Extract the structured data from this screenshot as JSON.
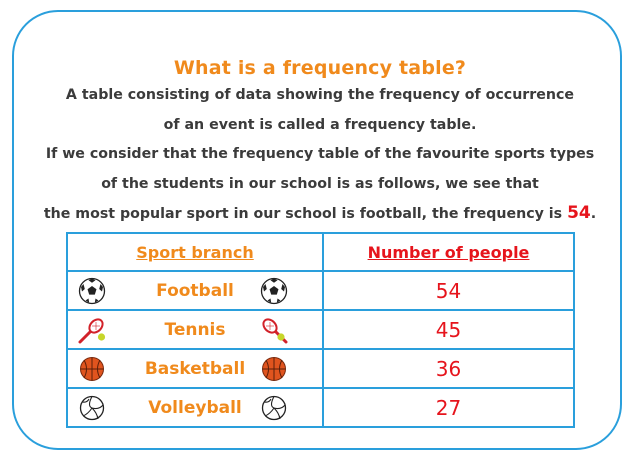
{
  "title": "What is a frequency table?",
  "paragraph": [
    "A table consisting of data showing the frequency of occurrence",
    "of an event is called a frequency table.",
    "If we consider that the frequency table of the favourite sports types",
    "of the students in our school is as follows, we see that"
  ],
  "last_line": {
    "text": "the most popular sport in our school is football, the frequency is",
    "highlight": "54",
    "end": "."
  },
  "table": {
    "headers": {
      "sport": "Sport branch",
      "count": "Number of people"
    },
    "rows": [
      {
        "sport": "Football",
        "count": "54",
        "icon": "football-icon"
      },
      {
        "sport": "Tennis",
        "count": "45",
        "icon": "tennis-racket-icon"
      },
      {
        "sport": "Basketball",
        "count": "36",
        "icon": "basketball-icon"
      },
      {
        "sport": "Volleyball",
        "count": "27",
        "icon": "volleyball-icon"
      }
    ]
  },
  "colors": {
    "border": "#2a9fdc",
    "title": "#f08a1c",
    "sport_text": "#f08a1c",
    "number_text": "#e6141c",
    "body_text": "#3b3b3b"
  }
}
